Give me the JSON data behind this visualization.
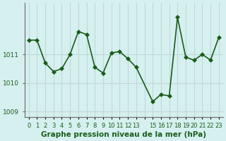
{
  "x": [
    0,
    1,
    2,
    3,
    4,
    5,
    6,
    7,
    8,
    9,
    10,
    11,
    12,
    13,
    15,
    16,
    17,
    18,
    19,
    20,
    21,
    22,
    23
  ],
  "y": [
    1011.5,
    1011.5,
    1010.7,
    1010.4,
    1010.5,
    1011.0,
    1011.8,
    1011.7,
    1010.55,
    1010.35,
    1011.05,
    1011.1,
    1010.85,
    1010.55,
    1009.35,
    1009.6,
    1009.55,
    1012.3,
    1010.9,
    1010.8,
    1011.0,
    1010.8,
    1011.6
  ],
  "ylim": [
    1008.8,
    1012.8
  ],
  "yticks": [
    1009,
    1010,
    1011
  ],
  "xticks": [
    0,
    1,
    2,
    3,
    4,
    5,
    6,
    7,
    8,
    9,
    10,
    11,
    12,
    13,
    14,
    15,
    16,
    17,
    18,
    19,
    20,
    21,
    22,
    23
  ],
  "xtick_labels": [
    "0",
    "1",
    "2",
    "3",
    "4",
    "5",
    "6",
    "7",
    "8",
    "9",
    "10",
    "11",
    "12",
    "13",
    "",
    "15",
    "16",
    "17",
    "18",
    "19",
    "20",
    "21",
    "22",
    "23"
  ],
  "line_color": "#1a5c1a",
  "marker_color": "#1a5c1a",
  "bg_color": "#d6f0f0",
  "grid_color": "#c0d8d8",
  "axis_label_color": "#1a5c1a",
  "xlabel": "Graphe pression niveau de la mer (hPa)",
  "xlabel_fontsize": 7.5,
  "marker_size": 3.0,
  "line_width": 1.2,
  "tick_fontsize": 6.5,
  "border_color": "#666666"
}
